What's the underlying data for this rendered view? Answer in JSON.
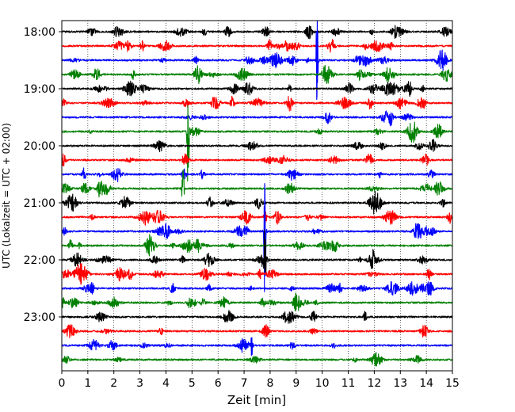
{
  "chart_data": {
    "type": "line",
    "title": "",
    "xlabel": "Zeit  [min]",
    "ylabel": "UTC (Lokalzeit = UTC + 02:00)",
    "xlim": [
      0,
      15
    ],
    "x_ticks": [
      "0",
      "1",
      "2",
      "3",
      "4",
      "5",
      "6",
      "7",
      "8",
      "9",
      "10",
      "11",
      "12",
      "13",
      "14",
      "15"
    ],
    "y_ticks": [
      "18:00",
      "19:00",
      "20:00",
      "21:00",
      "22:00",
      "23:00"
    ],
    "grid": "vertical dotted",
    "trace_start": "18:00",
    "trace_interval_min": 15,
    "trace_count": 24,
    "colors": [
      "#000000",
      "#ff0000",
      "#0000ff",
      "#008000"
    ],
    "events": [
      {
        "trace": 7,
        "minute": 4.85,
        "amplitude": 4.5
      },
      {
        "trace": 11,
        "minute": 4.65,
        "amplitude": 1.8
      },
      {
        "trace": 14,
        "minute": 7.8,
        "amplitude": 6.0
      },
      {
        "trace": 16,
        "minute": 7.8,
        "amplitude": 2.5
      },
      {
        "trace": 2,
        "minute": 9.8,
        "amplitude": 3.5
      },
      {
        "trace": 22,
        "minute": 7.3,
        "amplitude": 0.8
      }
    ]
  }
}
